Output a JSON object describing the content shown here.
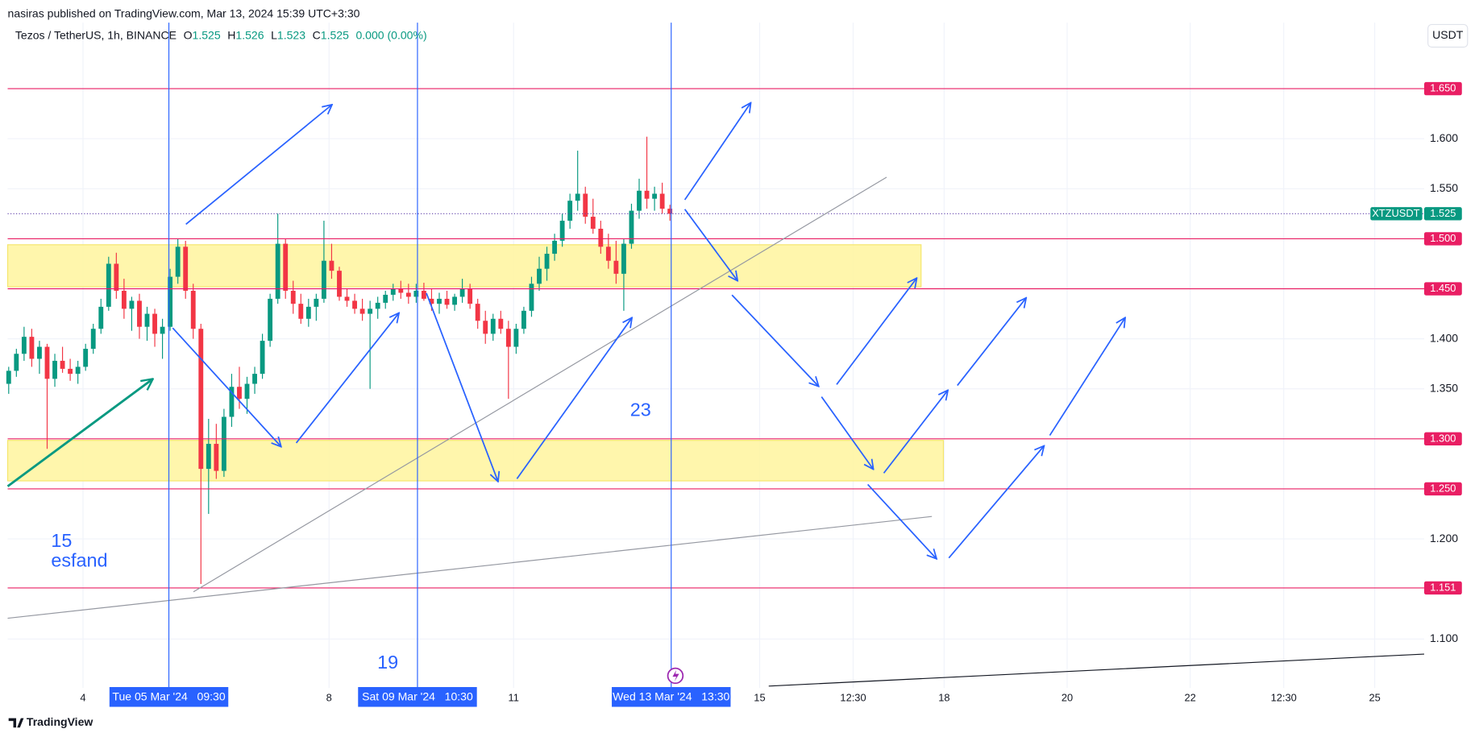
{
  "header": "nasiras published on TradingView.com, Mar 13, 2024 15:39 UTC+3:30",
  "footer": "TradingView",
  "currency_button": "USDT",
  "legend": {
    "symbol": "Tezos / TetherUS, 1h, BINANCE",
    "fields": [
      {
        "key": "O",
        "value": "1.525"
      },
      {
        "key": "H",
        "value": "1.526"
      },
      {
        "key": "L",
        "value": "1.523"
      },
      {
        "key": "C",
        "value": "1.525"
      }
    ],
    "change": "0.000 (0.00%)"
  },
  "annotations": [
    "15",
    "esfand",
    "19",
    "23"
  ],
  "chart_data": {
    "type": "candlestick",
    "xlim": [
      -29.4,
      523.3
    ],
    "ylim": [
      1.051,
      1.716
    ],
    "xticks": [
      {
        "value": 0,
        "label": "4"
      },
      {
        "value": 96,
        "label": "8"
      },
      {
        "value": 168,
        "label": "11"
      },
      {
        "value": 264,
        "label": "15"
      },
      {
        "value": 300.5,
        "label": "12:30"
      },
      {
        "value": 336,
        "label": "18"
      },
      {
        "value": 384,
        "label": "20"
      },
      {
        "value": 432,
        "label": "22"
      },
      {
        "value": 468.5,
        "label": "12:30"
      },
      {
        "value": 504,
        "label": "25"
      }
    ],
    "yticks": [
      {
        "value": 1.1,
        "label": "1.100"
      },
      {
        "value": 1.2,
        "label": "1.200"
      },
      {
        "value": 1.35,
        "label": "1.350"
      },
      {
        "value": 1.4,
        "label": "1.400"
      },
      {
        "value": 1.55,
        "label": "1.550"
      },
      {
        "value": 1.6,
        "label": "1.600"
      }
    ],
    "grid": true,
    "up_color": "#089981",
    "down_color": "#f23645",
    "series": [
      {
        "name": "XTZUSDT",
        "x": [
          -29,
          -26,
          -23,
          -20,
          -17,
          -14,
          -11,
          -8,
          -5,
          -2,
          1,
          4,
          7,
          10,
          13,
          16,
          19,
          22,
          25,
          28,
          31,
          34,
          37,
          40,
          43,
          46,
          49,
          52,
          55,
          58,
          61,
          64,
          67,
          70,
          73,
          76,
          79,
          82,
          85,
          88,
          91,
          94,
          97,
          100,
          103,
          106,
          109,
          112,
          115,
          118,
          121,
          124,
          127,
          130,
          133,
          136,
          139,
          142,
          145,
          148,
          151,
          154,
          157,
          160,
          163,
          166,
          169,
          172,
          175,
          178,
          181,
          184,
          187,
          190,
          193,
          196,
          199,
          202,
          205,
          208,
          211,
          214,
          217,
          220,
          223,
          226,
          229
        ],
        "open": [
          1.355,
          1.368,
          1.385,
          1.402,
          1.38,
          1.392,
          1.36,
          1.378,
          1.37,
          1.365,
          1.372,
          1.39,
          1.41,
          1.432,
          1.475,
          1.448,
          1.43,
          1.438,
          1.412,
          1.425,
          1.405,
          1.412,
          1.462,
          1.492,
          1.448,
          1.41,
          1.27,
          1.295,
          1.268,
          1.322,
          1.352,
          1.34,
          1.355,
          1.365,
          1.398,
          1.44,
          1.495,
          1.448,
          1.435,
          1.42,
          1.432,
          1.44,
          1.478,
          1.468,
          1.442,
          1.438,
          1.43,
          1.425,
          1.43,
          1.436,
          1.444,
          1.45,
          1.446,
          1.442,
          1.448,
          1.44,
          1.435,
          1.44,
          1.434,
          1.442,
          1.45,
          1.435,
          1.418,
          1.405,
          1.42,
          1.41,
          1.392,
          1.41,
          1.428,
          1.455,
          1.47,
          1.485,
          1.498,
          1.518,
          1.538,
          1.545,
          1.522,
          1.51,
          1.492,
          1.478,
          1.465,
          1.495,
          1.528,
          1.548,
          1.54,
          1.545,
          1.53
        ],
        "high": [
          1.372,
          1.39,
          1.412,
          1.41,
          1.398,
          1.395,
          1.385,
          1.392,
          1.38,
          1.378,
          1.395,
          1.415,
          1.44,
          1.482,
          1.486,
          1.46,
          1.442,
          1.445,
          1.432,
          1.43,
          1.42,
          1.47,
          1.5,
          1.498,
          1.455,
          1.415,
          1.32,
          1.315,
          1.33,
          1.365,
          1.372,
          1.362,
          1.372,
          1.405,
          1.445,
          1.525,
          1.5,
          1.458,
          1.445,
          1.44,
          1.445,
          1.518,
          1.495,
          1.472,
          1.45,
          1.445,
          1.44,
          1.438,
          1.442,
          1.448,
          1.455,
          1.458,
          1.455,
          1.455,
          1.456,
          1.45,
          1.446,
          1.448,
          1.445,
          1.46,
          1.455,
          1.44,
          1.428,
          1.425,
          1.428,
          1.418,
          1.415,
          1.432,
          1.462,
          1.482,
          1.492,
          1.505,
          1.525,
          1.545,
          1.588,
          1.552,
          1.54,
          1.518,
          1.505,
          1.498,
          1.5,
          1.535,
          1.56,
          1.602,
          1.552,
          1.556,
          1.534
        ],
        "low": [
          1.345,
          1.362,
          1.378,
          1.372,
          1.365,
          1.29,
          1.352,
          1.366,
          1.358,
          1.355,
          1.368,
          1.385,
          1.405,
          1.428,
          1.44,
          1.42,
          1.408,
          1.4,
          1.398,
          1.392,
          1.38,
          1.408,
          1.455,
          1.44,
          1.4,
          1.155,
          1.225,
          1.26,
          1.262,
          1.312,
          1.33,
          1.325,
          1.345,
          1.36,
          1.392,
          1.435,
          1.44,
          1.425,
          1.415,
          1.412,
          1.418,
          1.436,
          1.46,
          1.438,
          1.432,
          1.425,
          1.418,
          1.35,
          1.42,
          1.43,
          1.438,
          1.44,
          1.435,
          1.436,
          1.438,
          1.428,
          1.425,
          1.43,
          1.428,
          1.436,
          1.43,
          1.41,
          1.395,
          1.398,
          1.405,
          1.34,
          1.385,
          1.405,
          1.422,
          1.448,
          1.458,
          1.478,
          1.492,
          1.51,
          1.528,
          1.515,
          1.505,
          1.485,
          1.47,
          1.455,
          1.428,
          1.49,
          1.52,
          1.53,
          1.528,
          1.525,
          1.518
        ],
        "close": [
          1.368,
          1.385,
          1.402,
          1.38,
          1.392,
          1.36,
          1.378,
          1.37,
          1.365,
          1.372,
          1.39,
          1.41,
          1.432,
          1.475,
          1.448,
          1.43,
          1.438,
          1.412,
          1.425,
          1.405,
          1.412,
          1.462,
          1.492,
          1.448,
          1.41,
          1.27,
          1.295,
          1.268,
          1.322,
          1.352,
          1.34,
          1.355,
          1.365,
          1.398,
          1.44,
          1.495,
          1.448,
          1.435,
          1.42,
          1.432,
          1.44,
          1.478,
          1.468,
          1.442,
          1.438,
          1.43,
          1.425,
          1.43,
          1.436,
          1.444,
          1.45,
          1.446,
          1.442,
          1.448,
          1.44,
          1.435,
          1.44,
          1.434,
          1.442,
          1.45,
          1.435,
          1.418,
          1.405,
          1.42,
          1.41,
          1.392,
          1.41,
          1.428,
          1.455,
          1.47,
          1.485,
          1.498,
          1.518,
          1.538,
          1.545,
          1.522,
          1.51,
          1.492,
          1.478,
          1.465,
          1.495,
          1.528,
          1.548,
          1.54,
          1.545,
          1.53,
          1.525
        ]
      }
    ],
    "levels_color": "#e91e63",
    "levels": [
      {
        "value": 1.65,
        "label": "1.650"
      },
      {
        "value": 1.5,
        "label": "1.500"
      },
      {
        "value": 1.45,
        "label": "1.450"
      },
      {
        "value": 1.3,
        "label": "1.300"
      },
      {
        "value": 1.25,
        "label": "1.250"
      },
      {
        "value": 1.151,
        "label": "1.151"
      }
    ],
    "last_price": {
      "symbol": "XTZUSDT",
      "value": 1.525,
      "label": "1.525",
      "color": "#089981"
    },
    "zones_color": "#fff59d",
    "zones": [
      {
        "from": 1.452,
        "to": 1.494,
        "x_end": 327
      },
      {
        "from": 1.258,
        "to": 1.2985,
        "x_end": 335.7
      }
    ],
    "markers_color": "#2962ff",
    "markers": [
      {
        "x": 33.5,
        "label": "Tue 05 Mar '24   09:30"
      },
      {
        "x": 130.5,
        "label": "Sat 09 Mar '24   10:30"
      },
      {
        "x": 229.5,
        "label": "Wed 13 Mar '24   13:30"
      }
    ]
  }
}
